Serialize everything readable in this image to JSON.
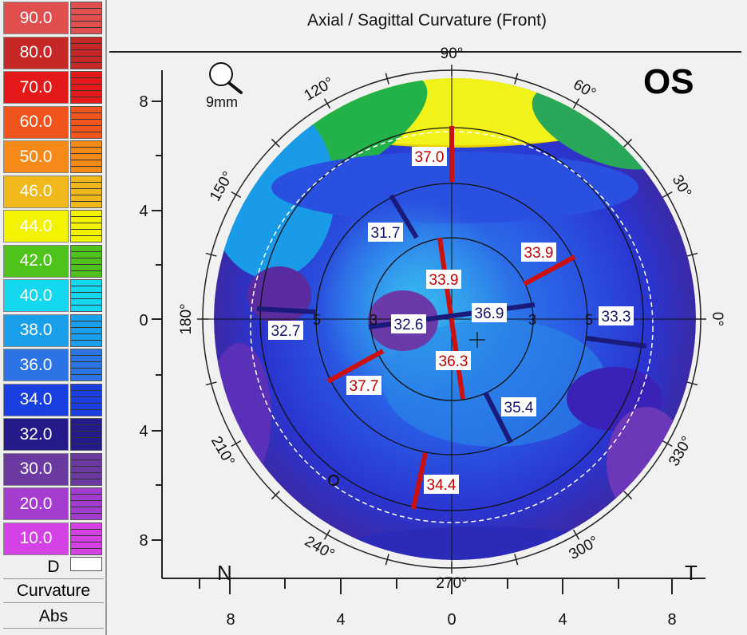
{
  "map_title": "Axial / Sagittal Curvature (Front)",
  "eye": "OS",
  "zoom": {
    "icon": "magnifier-icon",
    "label": "9mm"
  },
  "legend": {
    "steps": [
      {
        "value": "90.0",
        "color": "#e04e4e"
      },
      {
        "value": "80.0",
        "color": "#c62828"
      },
      {
        "value": "70.0",
        "color": "#e41a1a"
      },
      {
        "value": "60.0",
        "color": "#f2541e"
      },
      {
        "value": "50.0",
        "color": "#f58a18"
      },
      {
        "value": "46.0",
        "color": "#f0b81a"
      },
      {
        "value": "44.0",
        "color": "#f3f200"
      },
      {
        "value": "42.0",
        "color": "#4fc21c"
      },
      {
        "value": "40.0",
        "color": "#14d7f0"
      },
      {
        "value": "38.0",
        "color": "#1aa0ea"
      },
      {
        "value": "36.0",
        "color": "#2c74e6"
      },
      {
        "value": "34.0",
        "color": "#1a3fe0"
      },
      {
        "value": "32.0",
        "color": "#241a8a"
      },
      {
        "value": "30.0",
        "color": "#6a3aa0"
      },
      {
        "value": "20.0",
        "color": "#a43cd0"
      },
      {
        "value": "10.0",
        "color": "#d442e6"
      }
    ],
    "unit": "D",
    "mode": "Curvature",
    "scale": "Abs"
  },
  "axes": {
    "x_ticks": [
      "8",
      "4",
      "0",
      "4",
      "8"
    ],
    "y_ticks": [
      "8",
      "4",
      "0",
      "4",
      "8"
    ],
    "nasal": "N",
    "temporal": "T"
  },
  "angles": [
    "90°",
    "60°",
    "30°",
    "0°",
    "330°",
    "300°",
    "270°",
    "240°",
    "210°",
    "180°",
    "150°",
    "120°"
  ],
  "ring_labels": [
    "3",
    "3",
    "5",
    "5"
  ],
  "meridian_values": [
    {
      "text": "37.0",
      "kind": "steep"
    },
    {
      "text": "33.9",
      "kind": "steep"
    },
    {
      "text": "33.9",
      "kind": "steep"
    },
    {
      "text": "36.3",
      "kind": "steep"
    },
    {
      "text": "37.7",
      "kind": "steep"
    },
    {
      "text": "34.4",
      "kind": "steep"
    },
    {
      "text": "31.7",
      "kind": "flat"
    },
    {
      "text": "32.6",
      "kind": "flat"
    },
    {
      "text": "36.9",
      "kind": "flat"
    },
    {
      "text": "33.3",
      "kind": "flat"
    },
    {
      "text": "32.7",
      "kind": "flat"
    },
    {
      "text": "35.4",
      "kind": "flat"
    }
  ]
}
